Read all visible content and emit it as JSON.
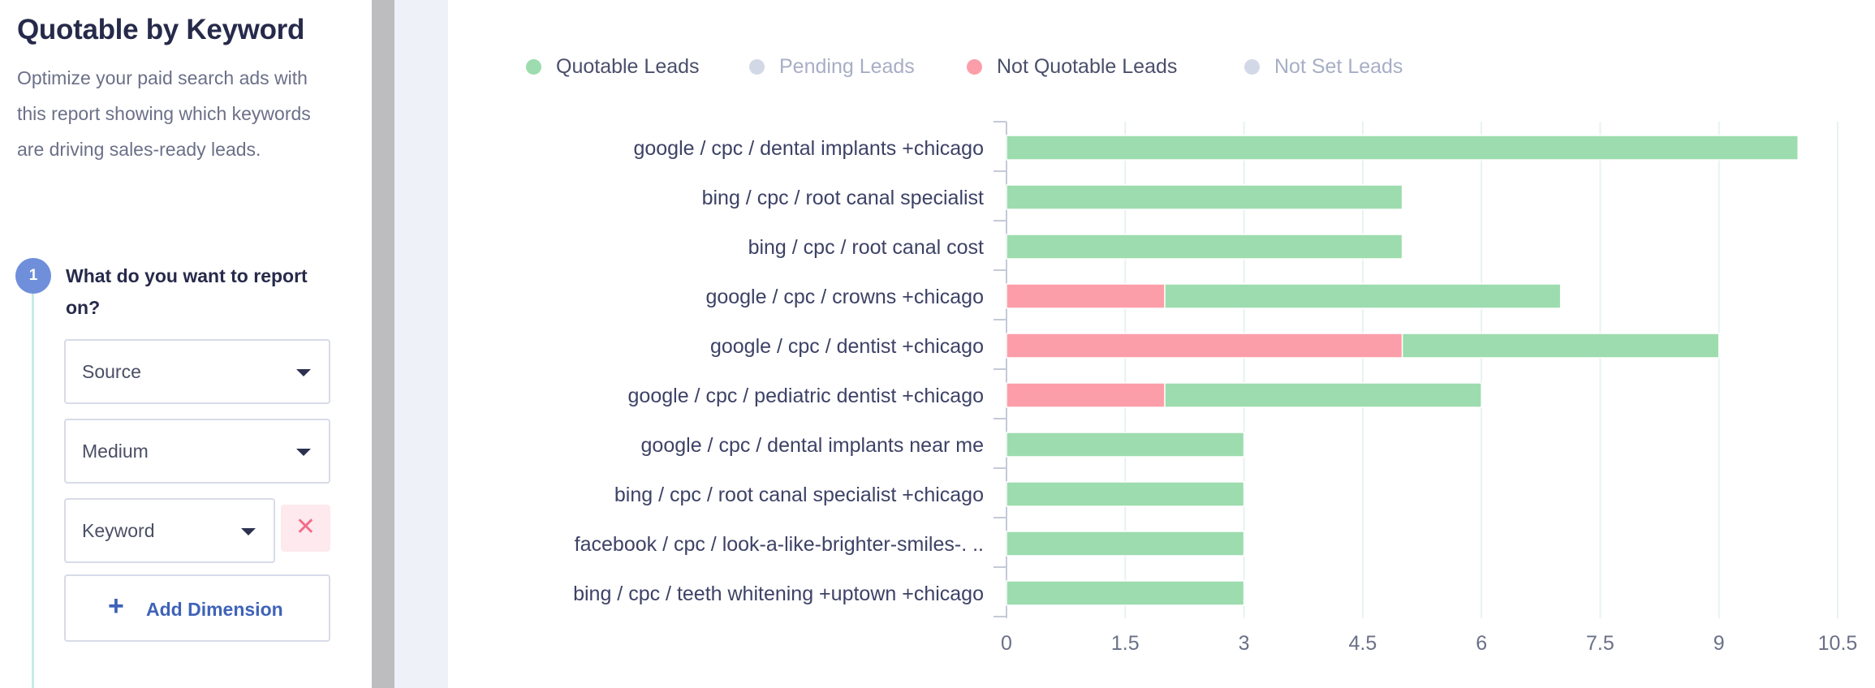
{
  "sidebar": {
    "title": "Quotable by Keyword",
    "description": "Optimize your paid search ads with this report showing which keywords are driving sales-ready leads.",
    "step": {
      "number": "1",
      "label": "What do you want to report on?"
    },
    "dimensions": [
      "Source",
      "Medium",
      "Keyword"
    ],
    "remove_label": "✕",
    "add_plus": "+",
    "add_label": "Add Dimension"
  },
  "chart_data": {
    "type": "bar",
    "orientation": "horizontal",
    "stacked": true,
    "legend": [
      {
        "name": "Quotable Leads",
        "color": "#9ddcae",
        "active": true
      },
      {
        "name": "Pending Leads",
        "color": "#d3d8e6",
        "active": false
      },
      {
        "name": "Not Quotable Leads",
        "color": "#fc9ea9",
        "active": true
      },
      {
        "name": "Not Set Leads",
        "color": "#d3d8e6",
        "active": false
      }
    ],
    "legend_placement": "top-left",
    "categories": [
      "google / cpc / dental implants +chicago",
      "bing / cpc / root canal specialist",
      "bing / cpc / root canal cost",
      "google / cpc / crowns +chicago",
      "google / cpc / dentist +chicago",
      "google / cpc / pediatric dentist +chicago",
      "google / cpc / dental implants near me",
      "bing / cpc / root canal specialist +chicago",
      "facebook / cpc / look-a-like-brighter-smiles-. ..",
      "bing / cpc / teeth whitening +uptown +chicago"
    ],
    "series": [
      {
        "name": "Not Quotable Leads",
        "color": "#fc9ea9",
        "values": [
          0,
          0,
          0,
          2,
          5,
          2,
          0,
          0,
          0,
          0
        ]
      },
      {
        "name": "Quotable Leads",
        "color": "#9ddcae",
        "values": [
          10,
          5,
          5,
          5,
          4,
          4,
          3,
          3,
          3,
          3
        ]
      }
    ],
    "xlim": [
      0,
      10.5
    ],
    "xticks": [
      0,
      1.5,
      3,
      4.5,
      6,
      7.5,
      9,
      10.5
    ],
    "xtick_labels": [
      "0",
      "1.5",
      "3",
      "4.5",
      "6",
      "7.5",
      "9",
      "10.5"
    ],
    "grid": true
  }
}
